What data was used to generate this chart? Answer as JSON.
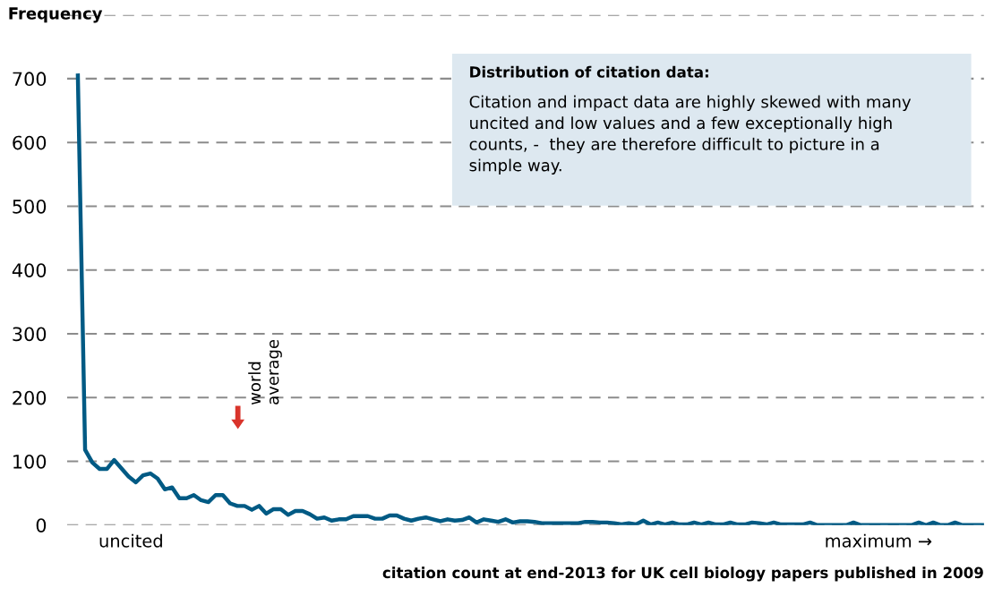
{
  "chart_data": {
    "type": "line",
    "ylabel": "Frequency",
    "xlabel": "citation count at end-2013 for UK cell biology papers published in 2009",
    "annotations": [
      "Distribution of citation data:",
      "Citation and impact data are highly skewed with many\nuncited and low values and a few exceptionally high\ncounts, -  they are therefore difficult to picture in a\nsimple way.",
      "world\naverage",
      "uncited",
      "maximum →"
    ],
    "categories": [
      null,
      null,
      null,
      null,
      null,
      null,
      null,
      null,
      null,
      null,
      null,
      null,
      null,
      null,
      null,
      null,
      null,
      null,
      null,
      null,
      null,
      null,
      null,
      null,
      null,
      null,
      null,
      null,
      null,
      null,
      null,
      null,
      null,
      null,
      null,
      null,
      null,
      null,
      null,
      null,
      null,
      null,
      null,
      null,
      null,
      null,
      null,
      null,
      null,
      null,
      null,
      null,
      null,
      null,
      null,
      null,
      null,
      null,
      null,
      null,
      null,
      null,
      null,
      null,
      null,
      null,
      null,
      null,
      null,
      null,
      null,
      null,
      null,
      null,
      null,
      null,
      null,
      null,
      null,
      null,
      null,
      null,
      null,
      null,
      null,
      null,
      null,
      null,
      null,
      null,
      null,
      null,
      null,
      null,
      null,
      null,
      null,
      null,
      null,
      null,
      null,
      null,
      null,
      null,
      null,
      null,
      null,
      null,
      null,
      null,
      null,
      null,
      null,
      null,
      null,
      null,
      null,
      null,
      null,
      null,
      null,
      null,
      null,
      null,
      null,
      null
    ],
    "series": [
      {
        "color": "#005a84",
        "values": [
          705,
          118,
          98,
          88,
          88,
          102,
          89,
          76,
          67,
          78,
          81,
          73,
          56,
          59,
          42,
          42,
          47,
          39,
          36,
          47,
          47,
          34,
          30,
          30,
          24,
          30,
          18,
          25,
          25,
          16,
          22,
          22,
          17,
          10,
          12,
          7,
          9,
          9,
          14,
          14,
          14,
          10,
          10,
          15,
          15,
          10,
          7,
          10,
          12,
          9,
          6,
          9,
          7,
          8,
          12,
          4,
          9,
          7,
          5,
          9,
          4,
          6,
          6,
          5,
          3,
          3,
          3,
          3,
          3,
          3,
          5,
          5,
          4,
          4,
          3,
          1,
          3,
          1,
          7,
          1,
          4,
          1,
          4,
          1,
          1,
          4,
          1,
          4,
          1,
          1,
          4,
          1,
          1,
          4,
          3,
          1,
          4,
          1,
          1,
          1,
          1,
          4,
          0,
          0,
          0,
          0,
          0,
          4,
          0,
          0,
          0,
          0,
          0,
          0,
          0,
          0,
          4,
          0,
          4,
          0,
          0,
          4,
          0,
          0,
          0,
          0
        ]
      }
    ],
    "ylim": [
      0,
      800
    ],
    "yticks": [
      0,
      100,
      200,
      300,
      400,
      500,
      600,
      700,
      {
        "value": 800,
        "label": null
      }
    ],
    "grid": "y",
    "line_style": "solid",
    "marker": "none"
  }
}
